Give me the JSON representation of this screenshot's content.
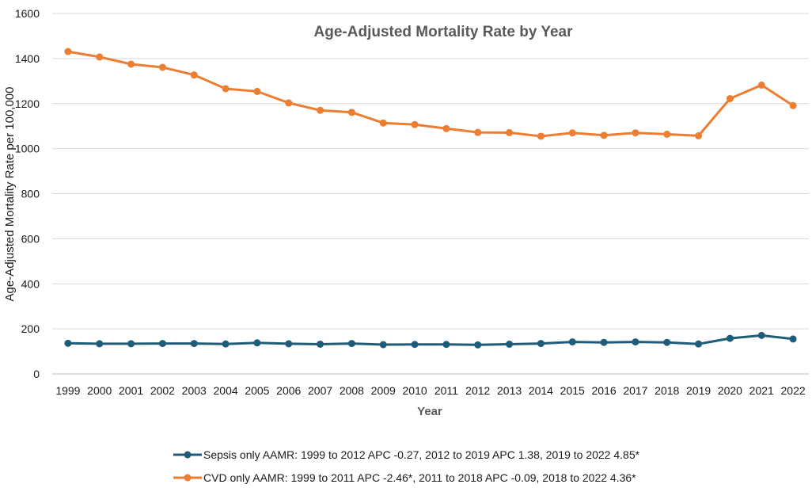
{
  "chart_data": {
    "type": "line",
    "title": "Age-Adjusted Mortality Rate by Year",
    "xlabel": "Year",
    "ylabel": "Age-Adjusted Mortality Rate per 100,000",
    "ylim": [
      0,
      1600
    ],
    "yticks": [
      0,
      200,
      400,
      600,
      800,
      1000,
      1200,
      1400,
      1600
    ],
    "grid": true,
    "legend_position": "bottom",
    "categories": [
      "1999",
      "2000",
      "2001",
      "2002",
      "2003",
      "2004",
      "2005",
      "2006",
      "2007",
      "2008",
      "2009",
      "2010",
      "2011",
      "2012",
      "2013",
      "2014",
      "2015",
      "2016",
      "2017",
      "2018",
      "2019",
      "2020",
      "2021",
      "2022"
    ],
    "series": [
      {
        "name": "Sepsis only AAMR: 1999 to 2012 APC -0.27, 2012 to 2019 APC 1.38, 2019 to 2022 4.85*",
        "color": "#1f5c7a",
        "values": [
          136,
          134,
          134,
          135,
          135,
          133,
          138,
          134,
          132,
          135,
          130,
          131,
          131,
          129,
          132,
          135,
          142,
          140,
          142,
          140,
          133,
          158,
          171,
          155
        ]
      },
      {
        "name": "CVD only AAMR: 1999 to 2011 APC -2.46*, 2011 to 2018 APC -0.09, 2018 to 2022 4.36*",
        "color": "#ed7d31",
        "values": [
          1431,
          1407,
          1375,
          1361,
          1327,
          1266,
          1254,
          1203,
          1170,
          1161,
          1114,
          1107,
          1089,
          1072,
          1071,
          1055,
          1070,
          1059,
          1070,
          1064,
          1057,
          1222,
          1282,
          1191
        ]
      }
    ]
  }
}
